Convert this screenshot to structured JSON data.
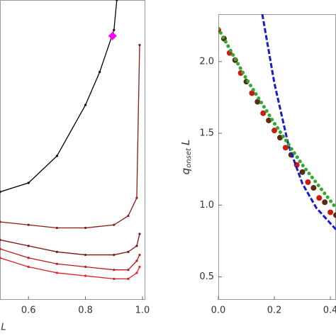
{
  "chart_data": [
    {
      "type": "line",
      "xlabel": "L",
      "xlim": [
        0.5,
        1.01
      ],
      "ylim": [
        0,
        1
      ],
      "xticks": [
        0.6,
        0.8,
        {
          "value": 1.0,
          "label": "1.0"
        }
      ],
      "series": [
        {
          "name": null,
          "color": "#000000",
          "kind": "line",
          "x": [
            0.5,
            0.6,
            0.7,
            0.8,
            0.85,
            0.9,
            0.91
          ],
          "values": [
            0.36,
            0.39,
            0.48,
            0.65,
            0.76,
            0.9,
            1.0
          ]
        },
        {
          "name": null,
          "color": "#8b1a10",
          "kind": "line",
          "x": [
            0.5,
            0.6,
            0.7,
            0.8,
            0.9,
            0.95,
            0.98,
            0.99
          ],
          "values": [
            0.26,
            0.25,
            0.24,
            0.24,
            0.25,
            0.28,
            0.34,
            0.85
          ]
        },
        {
          "name": null,
          "color": "#7a1410",
          "kind": "line",
          "x": [
            0.5,
            0.6,
            0.7,
            0.8,
            0.9,
            0.95,
            0.98,
            0.99
          ],
          "values": [
            0.2,
            0.18,
            0.16,
            0.15,
            0.15,
            0.16,
            0.18,
            0.22
          ]
        },
        {
          "name": null,
          "color": "#b81c14",
          "kind": "line",
          "x": [
            0.5,
            0.6,
            0.7,
            0.8,
            0.9,
            0.95,
            0.98,
            0.99
          ],
          "values": [
            0.17,
            0.14,
            0.12,
            0.11,
            0.1,
            0.1,
            0.13,
            0.15
          ]
        },
        {
          "name": null,
          "color": "#e02020",
          "kind": "line",
          "x": [
            0.5,
            0.6,
            0.7,
            0.8,
            0.9,
            0.95,
            0.98,
            0.99
          ],
          "values": [
            0.14,
            0.11,
            0.09,
            0.08,
            0.07,
            0.07,
            0.09,
            0.11
          ]
        },
        {
          "name": null,
          "color": "#ff00ff",
          "kind": "diamond",
          "x": [
            0.895
          ],
          "values": [
            0.88
          ]
        }
      ]
    },
    {
      "type": "line",
      "ylabel": [
        "q",
        "onset",
        "L"
      ],
      "xlim": [
        0,
        0.42
      ],
      "ylim": [
        0.34,
        2.33
      ],
      "xticks": [
        {
          "value": 0,
          "label": "0.0"
        },
        0.2,
        0.4
      ],
      "yticks": [
        0.5,
        {
          "value": 1,
          "label": "1.0"
        },
        1.5,
        {
          "value": 2,
          "label": "2.0"
        }
      ],
      "series": [
        {
          "name": null,
          "color": "#cc1a10",
          "kind": "points",
          "x": [
            0,
            0.04,
            0.08,
            0.12,
            0.16,
            0.2,
            0.24,
            0.28,
            0.32,
            0.36,
            0.4
          ],
          "values": [
            2.22,
            2.06,
            1.92,
            1.78,
            1.64,
            1.52,
            1.4,
            1.28,
            1.16,
            1.05,
            0.95
          ]
        },
        {
          "name": null,
          "color": "#5a2a10",
          "kind": "points",
          "x": [
            0.02,
            0.06,
            0.1,
            0.14,
            0.18,
            0.22,
            0.26,
            0.3,
            0.34,
            0.38,
            0.42
          ],
          "values": [
            2.16,
            2.01,
            1.86,
            1.72,
            1.59,
            1.47,
            1.35,
            1.23,
            1.12,
            1.02,
            0.93
          ]
        },
        {
          "name": null,
          "color": "#1a1acc",
          "kind": "dashed",
          "x": [
            0.157,
            0.2,
            0.25,
            0.3,
            0.35,
            0.42
          ],
          "values": [
            2.33,
            1.85,
            1.42,
            1.15,
            0.98,
            0.83
          ]
        },
        {
          "name": null,
          "color": "#2eaa2e",
          "kind": "dotted",
          "x": [
            0,
            0.1,
            0.2,
            0.3,
            0.42
          ],
          "values": [
            2.23,
            1.88,
            1.57,
            1.28,
            0.98
          ]
        }
      ]
    }
  ]
}
